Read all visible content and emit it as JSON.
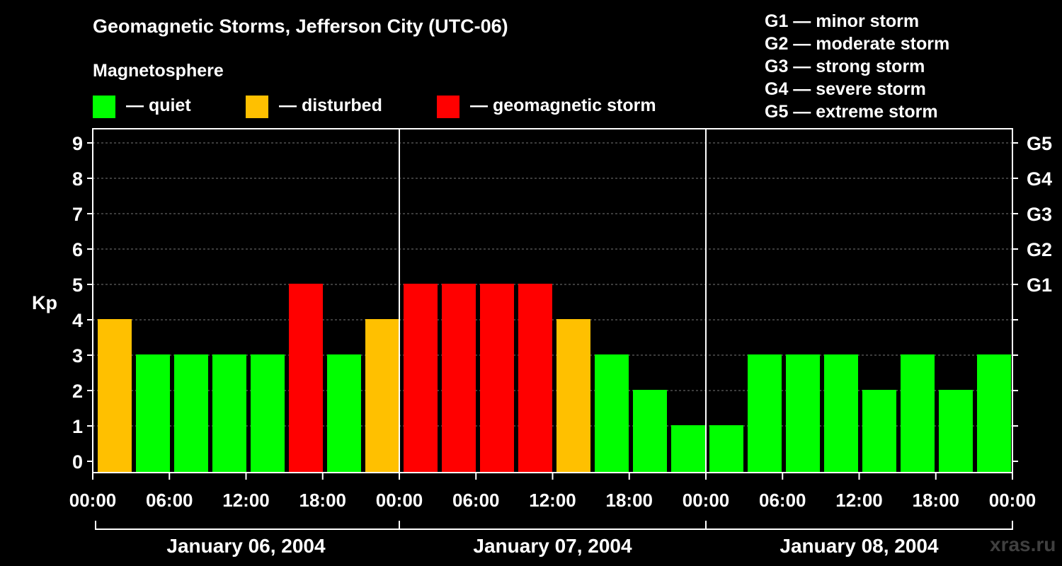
{
  "title": "Geomagnetic Storms, Jefferson City (UTC-06)",
  "subtitle": "Magnetosphere",
  "legend": [
    {
      "color": "#00ff00",
      "label": "— quiet"
    },
    {
      "color": "#ffc000",
      "label": "— disturbed"
    },
    {
      "color": "#ff0000",
      "label": "— geomagnetic storm"
    }
  ],
  "storm_scale": [
    "G1 — minor storm",
    "G2 — moderate storm",
    "G3 — strong storm",
    "G4 — severe storm",
    "G5 — extreme storm"
  ],
  "watermark": "xras.ru",
  "chart_data": {
    "type": "bar",
    "title": "Geomagnetic Storms, Jefferson City (UTC-06)",
    "ylabel": "Kp",
    "ylim": [
      0,
      9
    ],
    "yticks": [
      "0",
      "1",
      "2",
      "3",
      "4",
      "5",
      "6",
      "7",
      "8",
      "9"
    ],
    "right_ticks": [
      {
        "kp": 5,
        "label": "G1"
      },
      {
        "kp": 6,
        "label": "G2"
      },
      {
        "kp": 7,
        "label": "G3"
      },
      {
        "kp": 8,
        "label": "G4"
      },
      {
        "kp": 9,
        "label": "G5"
      }
    ],
    "xticks": [
      "00:00",
      "06:00",
      "12:00",
      "18:00",
      "00:00",
      "06:00",
      "12:00",
      "18:00",
      "00:00",
      "06:00",
      "12:00",
      "18:00",
      "00:00"
    ],
    "days": [
      "January 06, 2004",
      "January 07, 2004",
      "January 08, 2004"
    ],
    "interval_hours": 3,
    "values": [
      4,
      3,
      3,
      3,
      3,
      5,
      3,
      4,
      5,
      5,
      5,
      5,
      4,
      3,
      2,
      1,
      1,
      3,
      3,
      3,
      2,
      3,
      2,
      3
    ],
    "colors": {
      "quiet": "#00ff00",
      "disturbed": "#ffc000",
      "storm": "#ff0000"
    }
  }
}
